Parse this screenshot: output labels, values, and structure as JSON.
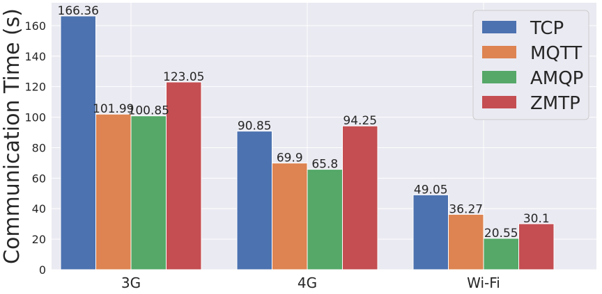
{
  "chart_data": {
    "type": "bar",
    "categories": [
      "3G",
      "4G",
      "Wi-Fi"
    ],
    "series": [
      {
        "name": "TCP",
        "values": [
          166.36,
          90.85,
          49.05
        ],
        "labels": [
          "166.36",
          "90.85",
          "49.05"
        ],
        "color": "#4c72b0"
      },
      {
        "name": "MQTT",
        "values": [
          101.99,
          69.9,
          36.27
        ],
        "labels": [
          "101.99",
          "69.9",
          "36.27"
        ],
        "color": "#dd8452"
      },
      {
        "name": "AMQP",
        "values": [
          100.85,
          65.8,
          20.55
        ],
        "labels": [
          "100.85",
          "65.8",
          "20.55"
        ],
        "color": "#55a868"
      },
      {
        "name": "ZMTP",
        "values": [
          123.05,
          94.25,
          30.1
        ],
        "labels": [
          "123.05",
          "94.25",
          "30.1"
        ],
        "color": "#c44e52"
      }
    ],
    "title": "",
    "xlabel": "",
    "ylabel": "Communication Time (s)",
    "ylim": [
      0,
      175
    ],
    "yticks": [
      0,
      20,
      40,
      60,
      80,
      100,
      120,
      140,
      160
    ],
    "grid": true,
    "legend_position": "top-right",
    "colors": {
      "plot_background": "#eaeaf2",
      "grid": "#ffffff",
      "text": "#262626"
    }
  }
}
